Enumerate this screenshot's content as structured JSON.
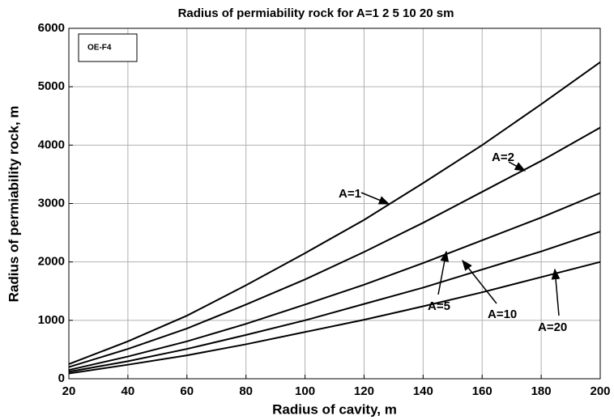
{
  "chart_data": {
    "type": "line",
    "title": "Radius of permiability rock for A=1   2   5  10  20 sm",
    "x_label": "Radius of cavity, m",
    "y_label": "Radius of permiability rock, m",
    "box_label": "OE-F4",
    "x": [
      20,
      40,
      60,
      80,
      100,
      120,
      140,
      160,
      180,
      200
    ],
    "series": [
      {
        "name": "A=1",
        "color": "#000000",
        "values": [
          250,
          640,
          1080,
          1600,
          2150,
          2720,
          3350,
          4000,
          4700,
          5420
        ]
      },
      {
        "name": "A=2",
        "color": "#000000",
        "values": [
          200,
          510,
          860,
          1270,
          1700,
          2170,
          2670,
          3200,
          3730,
          4300
        ]
      },
      {
        "name": "A=5",
        "color": "#000000",
        "values": [
          150,
          380,
          640,
          940,
          1270,
          1610,
          1980,
          2370,
          2760,
          3180
        ]
      },
      {
        "name": "A=10",
        "color": "#000000",
        "values": [
          120,
          300,
          510,
          750,
          1000,
          1280,
          1560,
          1870,
          2180,
          2520
        ]
      },
      {
        "name": "A=20",
        "color": "#000000",
        "values": [
          90,
          240,
          400,
          590,
          800,
          1010,
          1240,
          1480,
          1740,
          2000
        ]
      }
    ],
    "xlim": [
      20,
      200
    ],
    "xticks": [
      20,
      40,
      60,
      80,
      100,
      120,
      140,
      160,
      180,
      200
    ],
    "ylim": [
      0,
      6000
    ],
    "yticks": [
      0,
      1000,
      2000,
      3000,
      4000,
      5000,
      6000
    ],
    "grid": true
  }
}
